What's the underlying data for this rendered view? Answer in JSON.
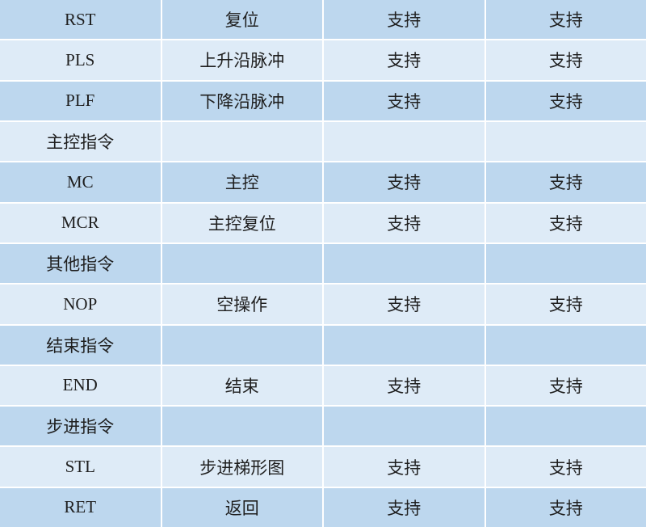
{
  "colors": {
    "row_medium": "#BDD7EE",
    "row_light": "#DEEBF7",
    "grid_line": "#FFFFFF",
    "text": "#1F1F1F"
  },
  "table": {
    "rows": [
      {
        "shade": "medium",
        "cells": [
          "RST",
          "复位",
          "支持",
          "支持"
        ]
      },
      {
        "shade": "light",
        "cells": [
          "PLS",
          "上升沿脉冲",
          "支持",
          "支持"
        ]
      },
      {
        "shade": "medium",
        "cells": [
          "PLF",
          "下降沿脉冲",
          "支持",
          "支持"
        ]
      },
      {
        "shade": "light",
        "cells": [
          "主控指令",
          "",
          "",
          ""
        ]
      },
      {
        "shade": "medium",
        "cells": [
          "MC",
          "主控",
          "支持",
          "支持"
        ]
      },
      {
        "shade": "light",
        "cells": [
          "MCR",
          "主控复位",
          "支持",
          "支持"
        ]
      },
      {
        "shade": "medium",
        "cells": [
          "其他指令",
          "",
          "",
          ""
        ]
      },
      {
        "shade": "light",
        "cells": [
          "NOP",
          "空操作",
          "支持",
          "支持"
        ]
      },
      {
        "shade": "medium",
        "cells": [
          "结束指令",
          "",
          "",
          ""
        ]
      },
      {
        "shade": "light",
        "cells": [
          "END",
          "结束",
          "支持",
          "支持"
        ]
      },
      {
        "shade": "medium",
        "cells": [
          "步进指令",
          "",
          "",
          ""
        ]
      },
      {
        "shade": "light",
        "cells": [
          "STL",
          "步进梯形图",
          "支持",
          "支持"
        ]
      },
      {
        "shade": "medium",
        "cells": [
          "RET",
          "返回",
          "支持",
          "支持"
        ]
      }
    ]
  }
}
